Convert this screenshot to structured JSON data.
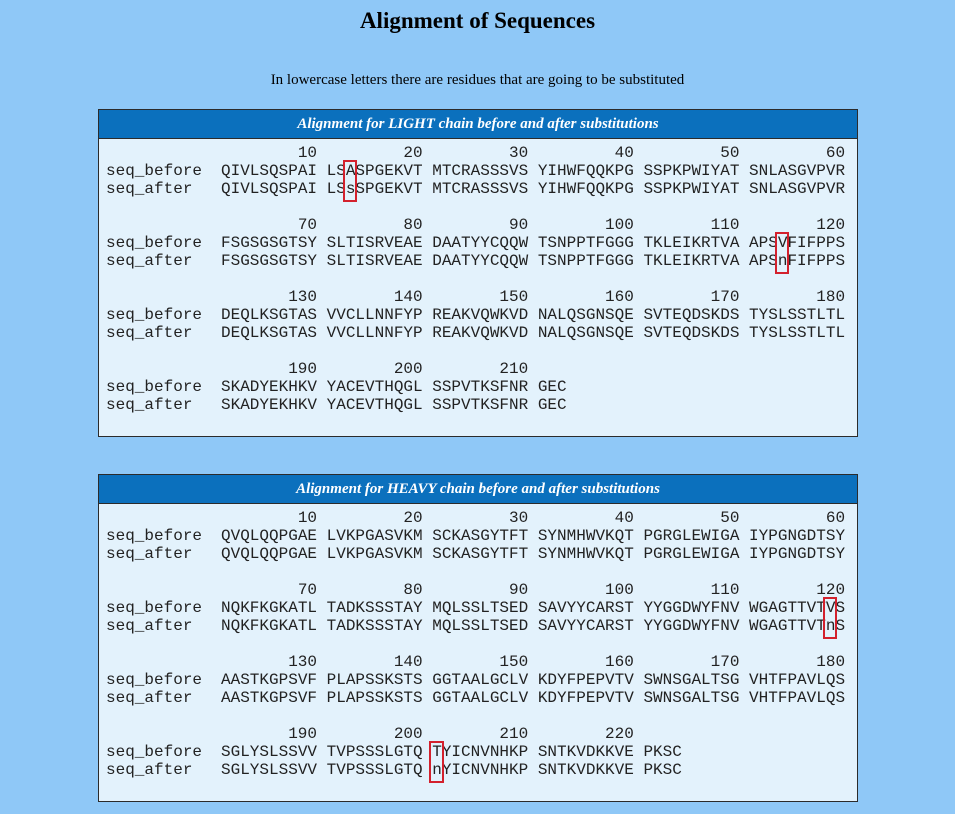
{
  "title": "Alignment of Sequences",
  "subtitle": "In lowercase letters there are residues that are going to be substituted",
  "panels": [
    {
      "header": "Alignment for LIGHT chain before and after substitutions",
      "blocks": [
        {
          "ticks": [
            10,
            20,
            30,
            40,
            50,
            60
          ],
          "rows": [
            {
              "label": "seq_before",
              "groups": [
                "QIVLSQSPAI",
                "LSASPGEKVT",
                "MTCRASSSVS",
                "YIHWFQQKPG",
                "SSPKPWIYAT",
                "SNLASGVPVR"
              ]
            },
            {
              "label": "seq_after",
              "groups": [
                "QIVLSQSPAI",
                "LSsSPGEKVT",
                "MTCRASSSVS",
                "YIHWFQQKPG",
                "SSPKPWIYAT",
                "SNLASGVPVR"
              ]
            }
          ]
        },
        {
          "ticks": [
            70,
            80,
            90,
            100,
            110,
            120
          ],
          "rows": [
            {
              "label": "seq_before",
              "groups": [
                "FSGSGSGTSY",
                "SLTISRVEAE",
                "DAATYYCQQW",
                "TSNPPTFGGG",
                "TKLEIKRTVA",
                "APSVFIFPPS"
              ]
            },
            {
              "label": "seq_after",
              "groups": [
                "FSGSGSGTSY",
                "SLTISRVEAE",
                "DAATYYCQQW",
                "TSNPPTFGGG",
                "TKLEIKRTVA",
                "APSnFIFPPS"
              ]
            }
          ]
        },
        {
          "ticks": [
            130,
            140,
            150,
            160,
            170,
            180
          ],
          "rows": [
            {
              "label": "seq_before",
              "groups": [
                "DEQLKSGTAS",
                "VVCLLNNFYP",
                "REAKVQWKVD",
                "NALQSGNSQE",
                "SVTEQDSKDS",
                "TYSLSSTLTL"
              ]
            },
            {
              "label": "seq_after",
              "groups": [
                "DEQLKSGTAS",
                "VVCLLNNFYP",
                "REAKVQWKVD",
                "NALQSGNSQE",
                "SVTEQDSKDS",
                "TYSLSSTLTL"
              ]
            }
          ]
        },
        {
          "ticks": [
            190,
            200,
            210
          ],
          "rows": [
            {
              "label": "seq_before",
              "groups": [
                "SKADYEKHKV",
                "YACEVTHQGL",
                "SSPVTKSFNR",
                "GEC"
              ]
            },
            {
              "label": "seq_after",
              "groups": [
                "SKADYEKHKV",
                "YACEVTHQGL",
                "SSPVTKSFNR",
                "GEC"
              ]
            }
          ]
        }
      ]
    },
    {
      "header": "Alignment for HEAVY chain before and after substitutions",
      "blocks": [
        {
          "ticks": [
            10,
            20,
            30,
            40,
            50,
            60
          ],
          "rows": [
            {
              "label": "seq_before",
              "groups": [
                "QVQLQQPGAE",
                "LVKPGASVKM",
                "SCKASGYTFT",
                "SYNMHWVKQT",
                "PGRGLEWIGA",
                "IYPGNGDTSY"
              ]
            },
            {
              "label": "seq_after",
              "groups": [
                "QVQLQQPGAE",
                "LVKPGASVKM",
                "SCKASGYTFT",
                "SYNMHWVKQT",
                "PGRGLEWIGA",
                "IYPGNGDTSY"
              ]
            }
          ]
        },
        {
          "ticks": [
            70,
            80,
            90,
            100,
            110,
            120
          ],
          "rows": [
            {
              "label": "seq_before",
              "groups": [
                "NQKFKGKATL",
                "TADKSSSTAY",
                "MQLSSLTSED",
                "SAVYYCARST",
                "YYGGDWYFNV",
                "WGAGTTVTVS"
              ]
            },
            {
              "label": "seq_after",
              "groups": [
                "NQKFKGKATL",
                "TADKSSSTAY",
                "MQLSSLTSED",
                "SAVYYCARST",
                "YYGGDWYFNV",
                "WGAGTTVTnS"
              ]
            }
          ]
        },
        {
          "ticks": [
            130,
            140,
            150,
            160,
            170,
            180
          ],
          "rows": [
            {
              "label": "seq_before",
              "groups": [
                "AASTKGPSVF",
                "PLAPSSKSTS",
                "GGTAALGCLV",
                "KDYFPEPVTV",
                "SWNSGALTSG",
                "VHTFPAVLQS"
              ]
            },
            {
              "label": "seq_after",
              "groups": [
                "AASTKGPSVF",
                "PLAPSSKSTS",
                "GGTAALGCLV",
                "KDYFPEPVTV",
                "SWNSGALTSG",
                "VHTFPAVLQS"
              ]
            }
          ]
        },
        {
          "ticks": [
            190,
            200,
            210,
            220
          ],
          "rows": [
            {
              "label": "seq_before",
              "groups": [
                "SGLYSLSSVV",
                "TVPSSSLGTQ",
                "TYICNVNHKP",
                "SNTKVDKKVE",
                "PKSC"
              ]
            },
            {
              "label": "seq_after",
              "groups": [
                "SGLYSLSSVV",
                "TVPSSSLGTQ",
                "nYICNVNHKP",
                "SNTKVDKKVE",
                "PKSC"
              ]
            }
          ]
        }
      ]
    }
  ]
}
